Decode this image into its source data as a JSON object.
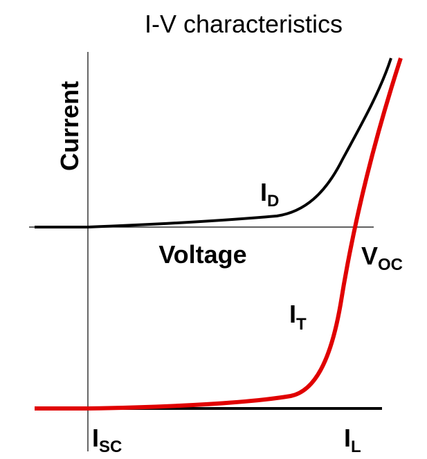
{
  "title": "I-V characteristics",
  "y_axis_label": "Current",
  "x_axis_label": "Voltage",
  "labels": {
    "dark_current": {
      "main": "I",
      "sub": "D"
    },
    "total_current": {
      "main": "I",
      "sub": "T"
    },
    "open_circuit_voltage": {
      "main": "V",
      "sub": "OC"
    },
    "short_circuit_current": {
      "main": "I",
      "sub": "SC"
    },
    "light_current": {
      "main": "I",
      "sub": "L"
    }
  }
}
